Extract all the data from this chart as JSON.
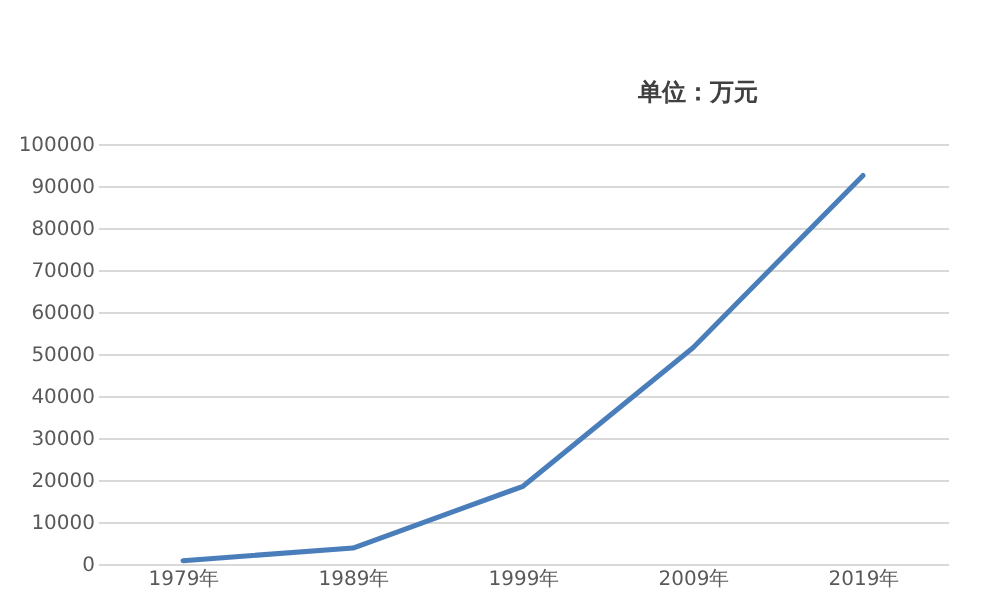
{
  "chart_data": {
    "type": "line",
    "annotations": [
      "单位：万元"
    ],
    "categories": [
      "1979年",
      "1989年",
      "1999年",
      "2009年",
      "2019年"
    ],
    "series": [
      {
        "color": "#4a7ebb",
        "values": [
          800,
          3800,
          18500,
          51500,
          92500
        ]
      }
    ],
    "ylim": [
      0,
      100000
    ],
    "yticks": [
      0,
      10000,
      20000,
      30000,
      40000,
      50000,
      60000,
      70000,
      80000,
      90000,
      100000
    ],
    "grid": "y",
    "marker": "none",
    "line_style": "solid"
  }
}
